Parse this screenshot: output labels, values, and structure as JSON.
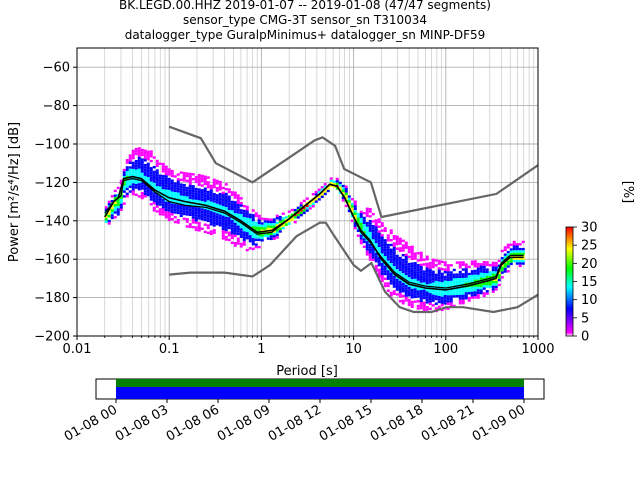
{
  "chart_data": {
    "type": "heatmap",
    "title_lines": [
      "BK.LEGD.00.HHZ   2019-01-07 -- 2019-01-08  (47/47 segments)",
      "sensor_type CMG-3T sensor_sn T310034",
      "datalogger_type GuralpMinimus+ datalogger_sn MINP-DF59"
    ],
    "xlabel": "Period [s]",
    "ylabel": "Power [m²/s⁴/Hz] [dB]",
    "x_scale": "log",
    "xlim": [
      0.01,
      1000
    ],
    "ylim": [
      -200,
      -50
    ],
    "x_ticks": [
      {
        "value": 0.01,
        "label": "0.01"
      },
      {
        "value": 0.1,
        "label": "0.1"
      },
      {
        "value": 1,
        "label": "1"
      },
      {
        "value": 10,
        "label": "10"
      },
      {
        "value": 100,
        "label": "100"
      },
      {
        "value": 1000,
        "label": "1000"
      }
    ],
    "y_ticks": [
      {
        "value": -60,
        "label": "−60"
      },
      {
        "value": -80,
        "label": "−80"
      },
      {
        "value": -100,
        "label": "−100"
      },
      {
        "value": -120,
        "label": "−120"
      },
      {
        "value": -140,
        "label": "−140"
      },
      {
        "value": -160,
        "label": "−160"
      },
      {
        "value": -180,
        "label": "−180"
      },
      {
        "value": -200,
        "label": "−200"
      }
    ],
    "grid": true,
    "colorbar": {
      "label": "[%]",
      "range": [
        0,
        30
      ],
      "ticks": [
        {
          "value": 0,
          "label": "0"
        },
        {
          "value": 5,
          "label": "5"
        },
        {
          "value": 10,
          "label": "10"
        },
        {
          "value": 15,
          "label": "15"
        },
        {
          "value": 20,
          "label": "20"
        },
        {
          "value": 25,
          "label": "25"
        },
        {
          "value": 30,
          "label": "30"
        }
      ],
      "colors": [
        "#ffffff",
        "#ff00ff",
        "#0000ff",
        "#00ffff",
        "#00ff00",
        "#ffff00",
        "#ff0000"
      ]
    },
    "noise_models": {
      "high": [
        [
          0.1,
          -91
        ],
        [
          0.22,
          -97
        ],
        [
          0.32,
          -110
        ],
        [
          0.8,
          -120
        ],
        [
          3.8,
          -98
        ],
        [
          4.6,
          -96.5
        ],
        [
          6.3,
          -101
        ],
        [
          7.9,
          -113
        ],
        [
          15.4,
          -120
        ],
        [
          20,
          -138
        ],
        [
          354,
          -126
        ],
        [
          1000,
          -111
        ]
      ],
      "low": [
        [
          0.1,
          -168
        ],
        [
          0.17,
          -167
        ],
        [
          0.4,
          -167
        ],
        [
          0.8,
          -169
        ],
        [
          1.24,
          -163
        ],
        [
          2.4,
          -148
        ],
        [
          4.3,
          -141
        ],
        [
          5,
          -141
        ],
        [
          6,
          -147
        ],
        [
          10,
          -163
        ],
        [
          12,
          -166
        ],
        [
          15.6,
          -162
        ],
        [
          21.9,
          -177
        ],
        [
          31.6,
          -185
        ],
        [
          45,
          -187.5
        ],
        [
          70,
          -187.5
        ],
        [
          101,
          -185
        ],
        [
          154,
          -185
        ],
        [
          328,
          -187.5
        ],
        [
          600,
          -185
        ],
        [
          1000,
          -178.5
        ]
      ]
    },
    "mode_curve": [
      [
        0.02,
        -138
      ],
      [
        0.025,
        -130
      ],
      [
        0.028,
        -128
      ],
      [
        0.032,
        -118
      ],
      [
        0.04,
        -117
      ],
      [
        0.05,
        -118
      ],
      [
        0.07,
        -124
      ],
      [
        0.1,
        -128
      ],
      [
        0.15,
        -130
      ],
      [
        0.25,
        -132
      ],
      [
        0.4,
        -135
      ],
      [
        0.6,
        -140
      ],
      [
        0.9,
        -146
      ],
      [
        1.3,
        -145
      ],
      [
        2,
        -139
      ],
      [
        3,
        -132
      ],
      [
        4.3,
        -126
      ],
      [
        5.5,
        -121
      ],
      [
        6.6,
        -122
      ],
      [
        8,
        -128
      ],
      [
        10,
        -138
      ],
      [
        12,
        -145
      ],
      [
        15,
        -150
      ],
      [
        20,
        -160
      ],
      [
        28,
        -168
      ],
      [
        40,
        -173
      ],
      [
        60,
        -175
      ],
      [
        100,
        -176
      ],
      [
        170,
        -174
      ],
      [
        300,
        -171
      ],
      [
        350,
        -170
      ],
      [
        400,
        -163
      ],
      [
        500,
        -159
      ],
      [
        700,
        -159
      ]
    ],
    "mean_curve": [
      [
        0.02,
        -136
      ],
      [
        0.025,
        -130
      ],
      [
        0.03,
        -127
      ],
      [
        0.032,
        -119
      ],
      [
        0.04,
        -118
      ],
      [
        0.05,
        -119
      ],
      [
        0.07,
        -125
      ],
      [
        0.1,
        -130
      ],
      [
        0.15,
        -132
      ],
      [
        0.25,
        -133
      ],
      [
        0.4,
        -136
      ],
      [
        0.6,
        -141
      ],
      [
        0.9,
        -147
      ],
      [
        1.3,
        -146
      ],
      [
        2,
        -139
      ],
      [
        3,
        -132
      ],
      [
        4.3,
        -126
      ],
      [
        5.5,
        -121
      ],
      [
        6.6,
        -122
      ],
      [
        8,
        -128
      ],
      [
        10,
        -138
      ],
      [
        12,
        -146
      ],
      [
        15,
        -151
      ],
      [
        20,
        -159
      ],
      [
        28,
        -167
      ],
      [
        40,
        -172
      ],
      [
        60,
        -174
      ],
      [
        100,
        -175
      ],
      [
        170,
        -173
      ],
      [
        300,
        -170
      ],
      [
        350,
        -169
      ],
      [
        400,
        -162
      ],
      [
        500,
        -158
      ],
      [
        700,
        -158
      ]
    ],
    "pdf_spread": [
      [
        0.02,
        5,
        5
      ],
      [
        0.03,
        6,
        12
      ],
      [
        0.04,
        14,
        10
      ],
      [
        0.06,
        18,
        12
      ],
      [
        0.1,
        14,
        12
      ],
      [
        0.2,
        15,
        14
      ],
      [
        0.4,
        14,
        16
      ],
      [
        0.7,
        10,
        14
      ],
      [
        1,
        8,
        6
      ],
      [
        1.5,
        6,
        5
      ],
      [
        2,
        4,
        4
      ],
      [
        4,
        3,
        3
      ],
      [
        6,
        3,
        3
      ],
      [
        10,
        8,
        6
      ],
      [
        15,
        16,
        12
      ],
      [
        25,
        20,
        14
      ],
      [
        40,
        20,
        12
      ],
      [
        70,
        15,
        12
      ],
      [
        100,
        14,
        10
      ],
      [
        200,
        12,
        8
      ],
      [
        350,
        8,
        6
      ],
      [
        500,
        8,
        6
      ],
      [
        700,
        8,
        5
      ]
    ],
    "timeline": {
      "tick_labels": [
        "01-08 00",
        "01-08 03",
        "01-08 06",
        "01-08 09",
        "01-08 12",
        "01-08 15",
        "01-08 18",
        "01-08 21",
        "01-09 00"
      ],
      "coverage": [
        {
          "name": "data",
          "color": "#008000"
        },
        {
          "name": "used",
          "color": "#0000ff"
        }
      ]
    }
  }
}
